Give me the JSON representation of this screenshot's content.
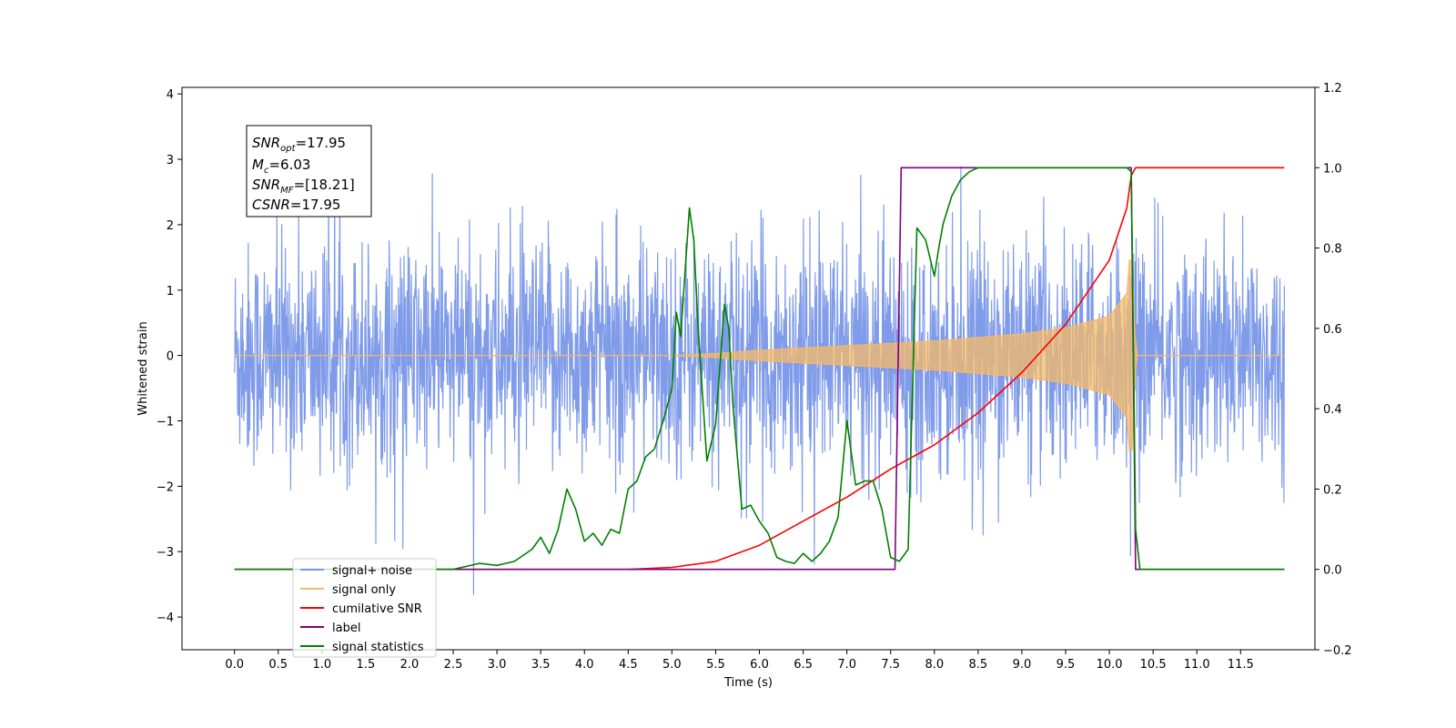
{
  "chart_data": {
    "type": "line",
    "xlabel": "Time (s)",
    "ylabel_left": "Whitened strain",
    "ylabel_right": "",
    "xlim": [
      -0.6,
      12.35
    ],
    "ylim_left": [
      -4.5,
      4.1
    ],
    "ylim_right": [
      -0.2,
      1.2
    ],
    "x_ticks": [
      "0.0",
      "0.5",
      "1.0",
      "1.5",
      "2.0",
      "2.5",
      "3.0",
      "3.5",
      "4.0",
      "4.5",
      "5.0",
      "5.5",
      "6.0",
      "6.5",
      "7.0",
      "7.5",
      "8.0",
      "8.5",
      "9.0",
      "9.5",
      "10.0",
      "10.5",
      "11.0",
      "11.5"
    ],
    "y_ticks_left": [
      "4",
      "3",
      "2",
      "1",
      "0",
      "−1",
      "−2",
      "−3",
      "−4"
    ],
    "y_ticks_right": [
      "1.2",
      "1.0",
      "0.8",
      "0.6",
      "0.4",
      "0.2",
      "0.0",
      "−0.2"
    ],
    "grid": false,
    "legend_position": "bottom-left",
    "annotation": {
      "snr_opt": {
        "base": "SNR",
        "sub": "opt",
        "value": "=17.95"
      },
      "mc": {
        "base": "M",
        "sub": "c",
        "value": "=6.03"
      },
      "snr_mf": {
        "base": "SNR",
        "sub": "MF",
        "value": "=[18.21]"
      },
      "csnr": {
        "base": "CSNR",
        "value": "=17.95"
      }
    },
    "series": [
      {
        "name": "signal+ noise",
        "axis": "left",
        "color": "#7896e8",
        "kind": "noise",
        "x_range": [
          0.0,
          12.0
        ],
        "approx_std": 0.85,
        "approx_extremes": [
          3.7,
          -4.1
        ]
      },
      {
        "name": "signal only",
        "axis": "left",
        "color": "#f5b967",
        "kind": "chirp",
        "x_range": [
          0.0,
          12.0
        ],
        "envelope_x": [
          0.0,
          5.0,
          5.5,
          6.0,
          7.0,
          8.0,
          9.0,
          9.5,
          10.0,
          10.2,
          10.25,
          10.3,
          12.0
        ],
        "envelope_y": [
          0.0,
          0.0,
          0.03,
          0.08,
          0.15,
          0.22,
          0.33,
          0.42,
          0.6,
          0.95,
          1.8,
          0.0,
          0.0
        ]
      },
      {
        "name": "cumilative SNR",
        "axis": "right",
        "color": "#ff0000",
        "x": [
          0.0,
          4.5,
          5.0,
          5.5,
          6.0,
          6.5,
          7.0,
          7.5,
          8.0,
          8.5,
          9.0,
          9.5,
          10.0,
          10.2,
          10.25,
          10.3,
          12.0
        ],
        "y": [
          0.0,
          0.0,
          0.005,
          0.02,
          0.06,
          0.12,
          0.18,
          0.25,
          0.31,
          0.39,
          0.49,
          0.61,
          0.77,
          0.9,
          0.98,
          1.0,
          1.0
        ]
      },
      {
        "name": "label",
        "axis": "right",
        "color": "#800080",
        "x": [
          0.0,
          7.55,
          7.62,
          10.25,
          10.3,
          12.0
        ],
        "y": [
          0.0,
          0.0,
          1.0,
          1.0,
          0.0,
          0.0
        ]
      },
      {
        "name": "signal statistics",
        "axis": "right",
        "color": "#008000",
        "x": [
          0.0,
          2.5,
          2.8,
          3.0,
          3.2,
          3.4,
          3.5,
          3.6,
          3.7,
          3.8,
          3.9,
          4.0,
          4.1,
          4.2,
          4.3,
          4.4,
          4.5,
          4.6,
          4.7,
          4.8,
          4.9,
          5.0,
          5.05,
          5.1,
          5.2,
          5.25,
          5.3,
          5.4,
          5.5,
          5.6,
          5.65,
          5.7,
          5.8,
          5.9,
          6.0,
          6.1,
          6.2,
          6.3,
          6.4,
          6.5,
          6.6,
          6.7,
          6.8,
          6.9,
          7.0,
          7.1,
          7.2,
          7.3,
          7.4,
          7.5,
          7.6,
          7.7,
          7.8,
          7.9,
          8.0,
          8.05,
          8.1,
          8.2,
          8.3,
          8.4,
          8.5,
          9.0,
          10.2,
          10.25,
          10.3,
          10.35,
          12.0
        ],
        "y": [
          0.0,
          0.0,
          0.015,
          0.01,
          0.02,
          0.05,
          0.08,
          0.04,
          0.1,
          0.2,
          0.15,
          0.07,
          0.09,
          0.06,
          0.1,
          0.09,
          0.2,
          0.22,
          0.28,
          0.3,
          0.37,
          0.45,
          0.64,
          0.58,
          0.9,
          0.82,
          0.6,
          0.27,
          0.36,
          0.66,
          0.6,
          0.4,
          0.15,
          0.16,
          0.12,
          0.09,
          0.03,
          0.02,
          0.015,
          0.04,
          0.02,
          0.04,
          0.07,
          0.13,
          0.37,
          0.21,
          0.22,
          0.22,
          0.15,
          0.03,
          0.02,
          0.05,
          0.85,
          0.82,
          0.73,
          0.8,
          0.86,
          0.93,
          0.97,
          0.99,
          1.0,
          1.0,
          1.0,
          0.99,
          0.1,
          0.0,
          0.0
        ]
      }
    ]
  }
}
